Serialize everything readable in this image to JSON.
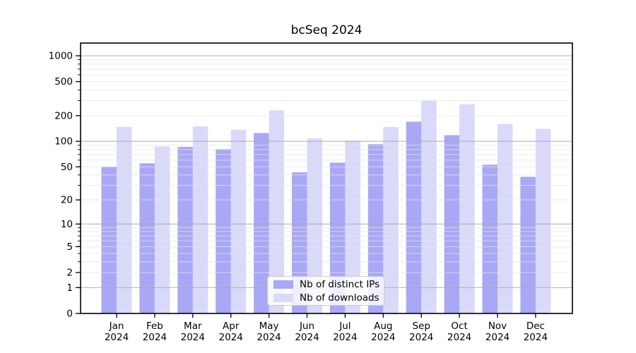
{
  "chart_data": {
    "type": "bar",
    "title": "bcSeq 2024",
    "categories": [
      "Jan",
      "Feb",
      "Mar",
      "Apr",
      "May",
      "Jun",
      "Jul",
      "Aug",
      "Sep",
      "Oct",
      "Nov",
      "Dec"
    ],
    "year_label": "2024",
    "series": [
      {
        "name": "Nb of distinct IPs",
        "color": "#a8a8f6",
        "values": [
          50,
          55,
          86,
          81,
          125,
          43,
          56,
          93,
          170,
          118,
          53,
          38
        ]
      },
      {
        "name": "Nb of downloads",
        "color": "#d9d9fa",
        "values": [
          147,
          87,
          150,
          137,
          231,
          108,
          102,
          147,
          302,
          271,
          160,
          140
        ]
      }
    ],
    "y_ticks": [
      1000,
      500,
      200,
      100,
      50,
      20,
      10,
      5,
      2,
      1,
      0
    ],
    "y_scale": "log10(value+1)",
    "ylim": [
      0,
      1400
    ],
    "grid": true,
    "legend_position": "lower center inside plot",
    "colors": {
      "major_grid": "#ababab",
      "minor_grid": "#e5e5e5",
      "axis": "#000000",
      "text": "#000000"
    }
  }
}
